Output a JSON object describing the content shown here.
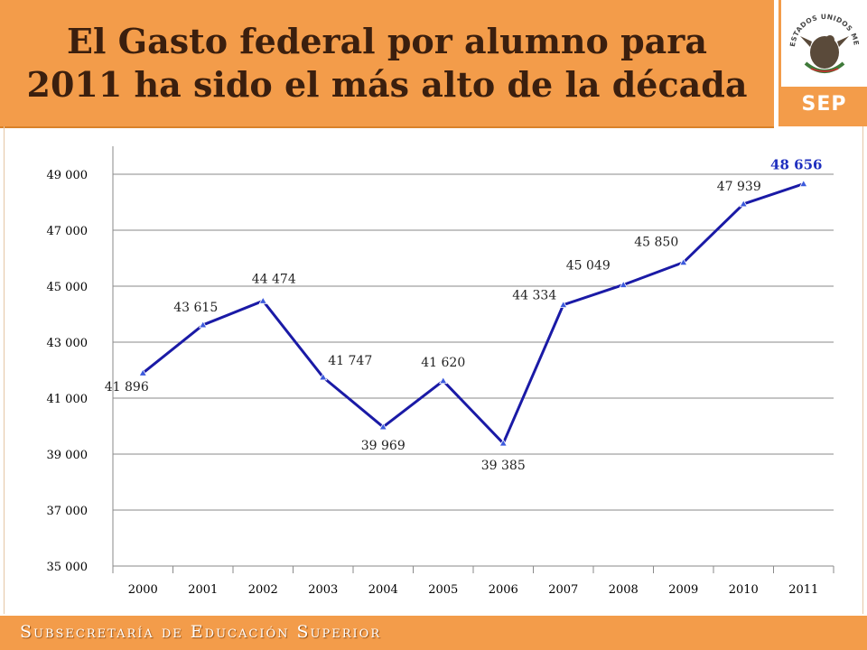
{
  "header": {
    "title_line1": "El Gasto federal por alumno para",
    "title_line2": "2011 ha sido el más alto de la década",
    "logo_text": "SEP",
    "seal_text": "ESTADOS UNIDOS MEXICANOS"
  },
  "footer": {
    "text": "Subsecretaría de Educación Superior"
  },
  "colors": {
    "accent": "#f39c4a",
    "line": "#1a1aa6",
    "marker": "#3c5adc",
    "last_label": "#1f2fbf"
  },
  "chart_data": {
    "type": "line",
    "categories": [
      "2000",
      "2001",
      "2002",
      "2003",
      "2004",
      "2005",
      "2006",
      "2007",
      "2008",
      "2009",
      "2010",
      "2011"
    ],
    "series": [
      {
        "values": [
          41896,
          43615,
          44474,
          41747,
          39969,
          41620,
          39385,
          44334,
          45049,
          45850,
          47939,
          48656
        ]
      }
    ],
    "data_labels": [
      "41 896",
      "43 615",
      "44 474",
      "41 747",
      "39 969",
      "41 620",
      "39 385",
      "44 334",
      "45 049",
      "45 850",
      "47 939",
      "48 656"
    ],
    "yticks": [
      35000,
      37000,
      39000,
      41000,
      43000,
      45000,
      47000,
      49000
    ],
    "ytick_labels": [
      "35 000",
      "37 000",
      "39 000",
      "41 000",
      "43 000",
      "45 000",
      "47 000",
      "49 000"
    ],
    "ylim": [
      35000,
      50000
    ],
    "grid": "horizontal",
    "legend": "none"
  }
}
